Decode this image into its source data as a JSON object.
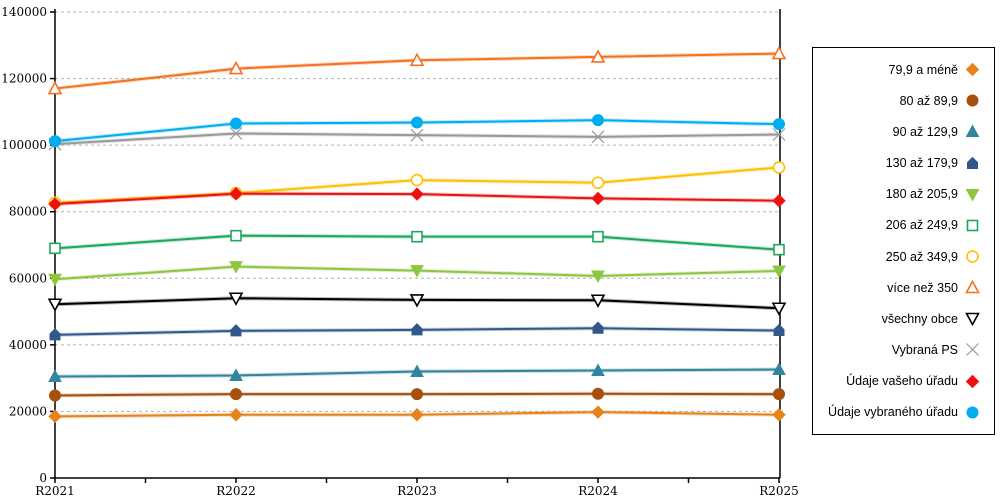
{
  "chart_data": {
    "type": "line",
    "title": "",
    "xlabel": "",
    "ylabel": "",
    "legend_position": "right-box",
    "grid": "horizontal-dashed",
    "categories": [
      "R2021",
      "R2022",
      "R2023",
      "R2024",
      "R2025"
    ],
    "y_axis": {
      "min": 0,
      "max": 140000,
      "step": 20000,
      "tick_labels": [
        "0",
        "20000",
        "40000",
        "60000",
        "80000",
        "100000",
        "120000",
        "140000"
      ]
    },
    "series": [
      {
        "name": "79,9 a méně",
        "color": "#E8831C",
        "marker": "diamond",
        "filled": true,
        "values": [
          18500,
          19000,
          19000,
          19800,
          19000
        ]
      },
      {
        "name": "80 až 89,9",
        "color": "#A6500F",
        "marker": "circle",
        "filled": true,
        "values": [
          24800,
          25200,
          25200,
          25300,
          25200
        ]
      },
      {
        "name": "90 až 129,9",
        "color": "#31859C",
        "marker": "triangle-up",
        "filled": true,
        "values": [
          30500,
          30800,
          32000,
          32300,
          32600
        ]
      },
      {
        "name": "130 až 179,9",
        "color": "#31588C",
        "marker": "pentagon",
        "filled": true,
        "values": [
          43000,
          44200,
          44500,
          45000,
          44300
        ]
      },
      {
        "name": "180 až 205,9",
        "color": "#8DC63F",
        "marker": "triangle-down",
        "filled": true,
        "values": [
          59700,
          63500,
          62300,
          60700,
          62200
        ]
      },
      {
        "name": "206 až 249,9",
        "color": "#1CA85B",
        "marker": "square",
        "filled": false,
        "values": [
          69000,
          72800,
          72500,
          72500,
          68600
        ]
      },
      {
        "name": "250 až 349,9",
        "color": "#FFC000",
        "marker": "circle",
        "filled": false,
        "values": [
          82700,
          85600,
          89500,
          88700,
          93300
        ]
      },
      {
        "name": "více než 350",
        "color": "#F4711F",
        "marker": "triangle-up",
        "filled": false,
        "values": [
          117000,
          123000,
          125500,
          126500,
          127500
        ]
      },
      {
        "name": "všechny obce",
        "color": "#000000",
        "marker": "triangle-down",
        "filled": false,
        "values": [
          52200,
          54000,
          53500,
          53400,
          51000
        ]
      },
      {
        "name": "Vybraná PS",
        "color": "#999999",
        "marker": "x",
        "filled": false,
        "values": [
          100300,
          103500,
          103000,
          102500,
          103200
        ]
      },
      {
        "name": "Údaje vašeho úřadu",
        "color": "#ED1111",
        "marker": "diamond",
        "filled": true,
        "values": [
          82300,
          85400,
          85300,
          84000,
          83300
        ]
      },
      {
        "name": "Údaje vybraného úřadu",
        "color": "#00AEEF",
        "marker": "circle",
        "filled": true,
        "values": [
          101200,
          106500,
          106800,
          107500,
          106300
        ]
      }
    ],
    "gridline_color": "#b3b3b3",
    "axis_color": "#000000"
  }
}
